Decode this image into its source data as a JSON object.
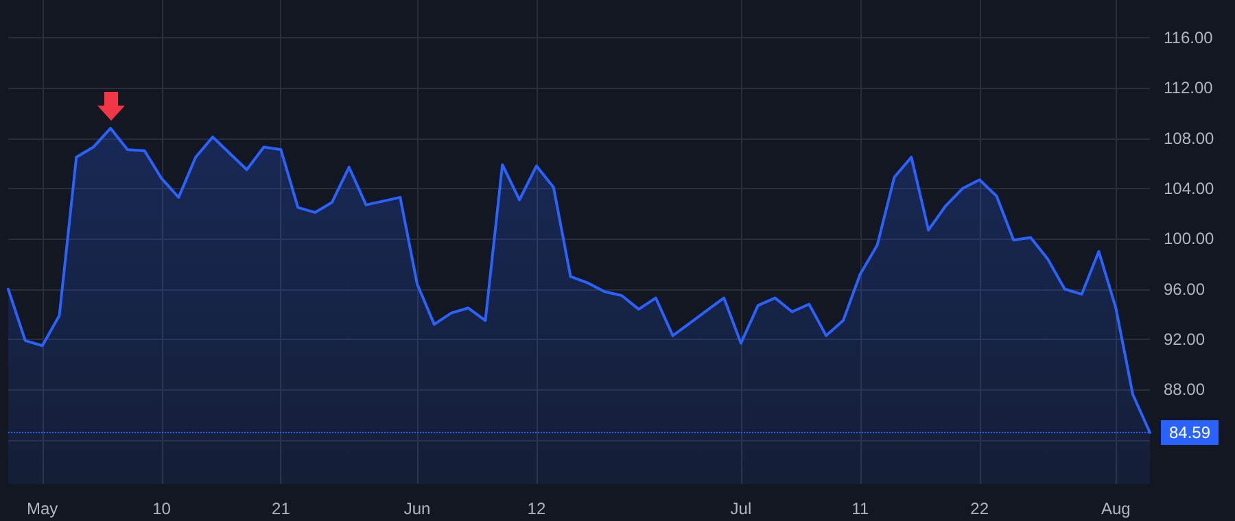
{
  "chart_data": {
    "type": "area",
    "categories": [
      null,
      null,
      "May",
      null,
      null,
      null,
      null,
      null,
      null,
      "10",
      null,
      null,
      null,
      null,
      null,
      null,
      "21",
      null,
      null,
      null,
      null,
      null,
      null,
      null,
      "Jun",
      null,
      null,
      null,
      null,
      null,
      null,
      "12",
      null,
      null,
      null,
      null,
      null,
      null,
      null,
      null,
      null,
      null,
      null,
      "Jul",
      null,
      null,
      null,
      null,
      null,
      null,
      "11",
      null,
      null,
      null,
      null,
      null,
      null,
      "22",
      null,
      null,
      null,
      null,
      null,
      null,
      null,
      "Aug",
      null,
      null
    ],
    "series": [
      {
        "color": "#2962ff",
        "values": [
          96.0,
          91.9,
          91.5,
          93.9,
          106.5,
          107.3,
          108.8,
          107.1,
          107.0,
          104.8,
          103.3,
          106.5,
          108.1,
          106.8,
          105.5,
          107.3,
          107.1,
          102.5,
          102.1,
          102.9,
          105.7,
          102.7,
          103.0,
          103.3,
          96.4,
          93.2,
          94.1,
          94.5,
          93.5,
          105.9,
          103.1,
          105.8,
          104.1,
          97.0,
          96.5,
          95.8,
          95.5,
          94.4,
          95.3,
          92.3,
          93.3,
          94.3,
          95.3,
          91.7,
          94.7,
          95.3,
          94.2,
          94.8,
          92.3,
          93.5,
          97.2,
          99.5,
          104.9,
          106.5,
          100.7,
          102.6,
          104.0,
          104.7,
          103.4,
          99.9,
          100.1,
          98.4,
          96.0,
          95.6,
          99.0,
          94.5,
          87.6,
          84.59
        ]
      }
    ],
    "ylim": [
      80.5,
      119
    ],
    "yticks": [
      {
        "value": 84,
        "label": null
      },
      {
        "value": 88,
        "label": "88.00"
      },
      {
        "value": 92,
        "label": "92.00"
      },
      {
        "value": 96,
        "label": "96.00"
      },
      {
        "value": 100,
        "label": "100.00"
      },
      {
        "value": 104,
        "label": "104.00"
      },
      {
        "value": 108,
        "label": "108.00"
      },
      {
        "value": 112,
        "label": "112.00"
      },
      {
        "value": 116,
        "label": "116.00"
      }
    ],
    "ref_lines": [
      {
        "axis": "y",
        "value": 84.59,
        "label": "84.59",
        "color": "#2962ff",
        "line_style": "dotted"
      }
    ],
    "grid": true,
    "marker": "none",
    "line_style": "solid"
  }
}
